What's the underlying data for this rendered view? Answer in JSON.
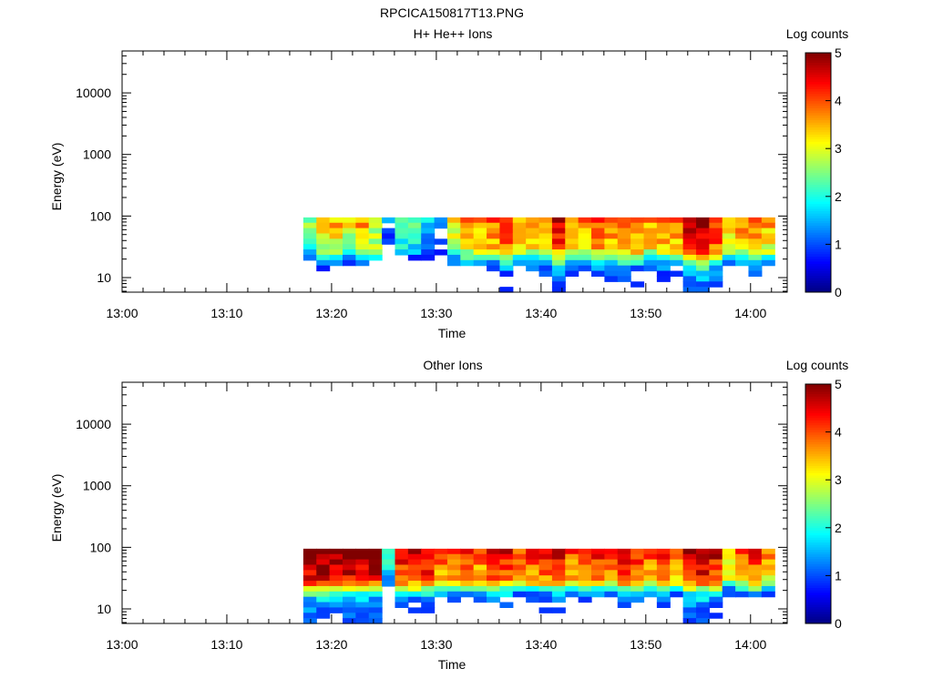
{
  "title": "RPCICA150817T13.PNG",
  "chart_data": [
    {
      "type": "heatmap",
      "title": "H+ He++ Ions",
      "xlabel": "Time",
      "ylabel": "Energy (eV)",
      "yscale": "log",
      "ylim": [
        5.8,
        48000
      ],
      "xlim": [
        "13:00",
        "14:03.5"
      ],
      "x_ticks": [
        "13:00",
        "13:10",
        "13:20",
        "13:30",
        "13:40",
        "13:50",
        "14:00"
      ],
      "y_ticks": [
        "10",
        "100",
        "1000",
        "10000"
      ],
      "colorbar": {
        "label": "Log counts",
        "range": [
          0,
          5
        ],
        "ticks": [
          "0",
          "1",
          "2",
          "3",
          "4",
          "5"
        ]
      },
      "data_extent": {
        "time_start": "13:17.3",
        "time_end": "14:02.3",
        "energy_min": 5.8,
        "energy_max": 95
      },
      "profile": {
        "time_columns": 36,
        "energy_rows": 14,
        "column_level": [
          2.6,
          3.3,
          3.4,
          3.1,
          3.6,
          3.0,
          1.0,
          2.4,
          2.2,
          1.8,
          1.2,
          3.2,
          3.6,
          3.5,
          3.8,
          4.2,
          3.6,
          3.7,
          3.8,
          4.4,
          3.8,
          3.7,
          4.1,
          3.9,
          4.2,
          4.0,
          3.6,
          3.9,
          3.7,
          4.6,
          4.8,
          4.3,
          3.3,
          3.7,
          4.0,
          3.5
        ],
        "row_offset": [
          0.1,
          0.0,
          -0.2,
          -0.3,
          -0.3,
          -0.4,
          -0.8,
          -1.5,
          -2.3,
          -2.8,
          -3.1,
          -3.4,
          -3.6,
          -3.8
        ],
        "blank_below": 0.7
      }
    },
    {
      "type": "heatmap",
      "title": "Other Ions",
      "xlabel": "Time",
      "ylabel": "Energy (eV)",
      "yscale": "log",
      "ylim": [
        5.8,
        48000
      ],
      "xlim": [
        "13:00",
        "14:03.5"
      ],
      "x_ticks": [
        "13:00",
        "13:10",
        "13:20",
        "13:30",
        "13:40",
        "13:50",
        "14:00"
      ],
      "y_ticks": [
        "10",
        "100",
        "1000",
        "10000"
      ],
      "colorbar": {
        "label": "Log counts",
        "range": [
          0,
          5
        ],
        "ticks": [
          "0",
          "1",
          "2",
          "3",
          "4",
          "5"
        ]
      },
      "data_extent": {
        "time_start": "13:17.3",
        "time_end": "14:02.3",
        "energy_min": 5.8,
        "energy_max": 95
      },
      "profile": {
        "time_columns": 36,
        "energy_rows": 14,
        "column_level": [
          5.0,
          5.0,
          5.0,
          5.0,
          4.8,
          4.9,
          2.0,
          4.5,
          4.7,
          4.6,
          4.0,
          3.9,
          4.1,
          4.0,
          4.3,
          4.4,
          4.0,
          4.1,
          4.3,
          4.5,
          3.9,
          4.0,
          4.3,
          4.1,
          4.4,
          4.2,
          3.9,
          4.2,
          4.0,
          4.8,
          4.9,
          4.5,
          3.5,
          3.9,
          4.3,
          3.7
        ],
        "row_offset": [
          0.1,
          0.0,
          -0.2,
          -0.3,
          -0.4,
          -0.5,
          -1.0,
          -2.0,
          -2.8,
          -3.3,
          -3.6,
          -3.8,
          -4.0,
          -4.2
        ],
        "blank_below": 0.8
      }
    }
  ]
}
